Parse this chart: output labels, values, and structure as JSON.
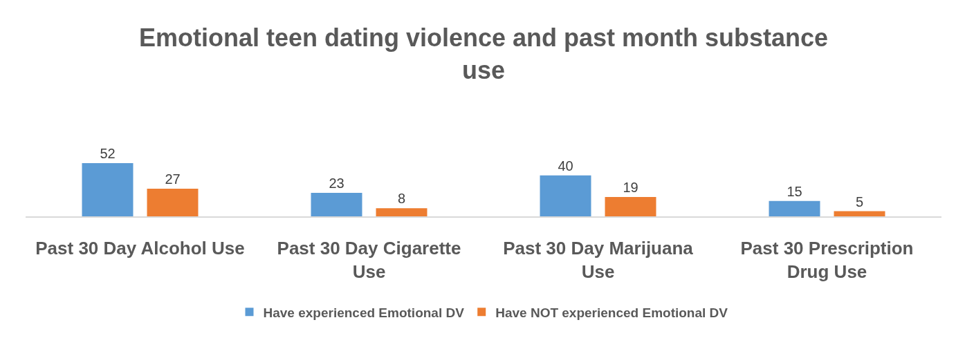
{
  "chart_data": {
    "type": "bar",
    "title": "Emotional teen dating violence and past month substance use",
    "categories": [
      "Past 30 Day Alcohol Use",
      "Past 30 Day Cigarette Use",
      "Past 30 Day Marijuana Use",
      "Past 30 Prescription Drug Use"
    ],
    "series": [
      {
        "name": "Have experienced Emotional DV",
        "color": "#5b9bd5",
        "values": [
          52,
          23,
          40,
          15
        ]
      },
      {
        "name": "Have NOT experienced Emotional DV",
        "color": "#ed7d31",
        "values": [
          27,
          8,
          19,
          5
        ]
      }
    ],
    "data_labels": true,
    "legend": "bottom",
    "grid": false,
    "tick_labels": "x"
  }
}
